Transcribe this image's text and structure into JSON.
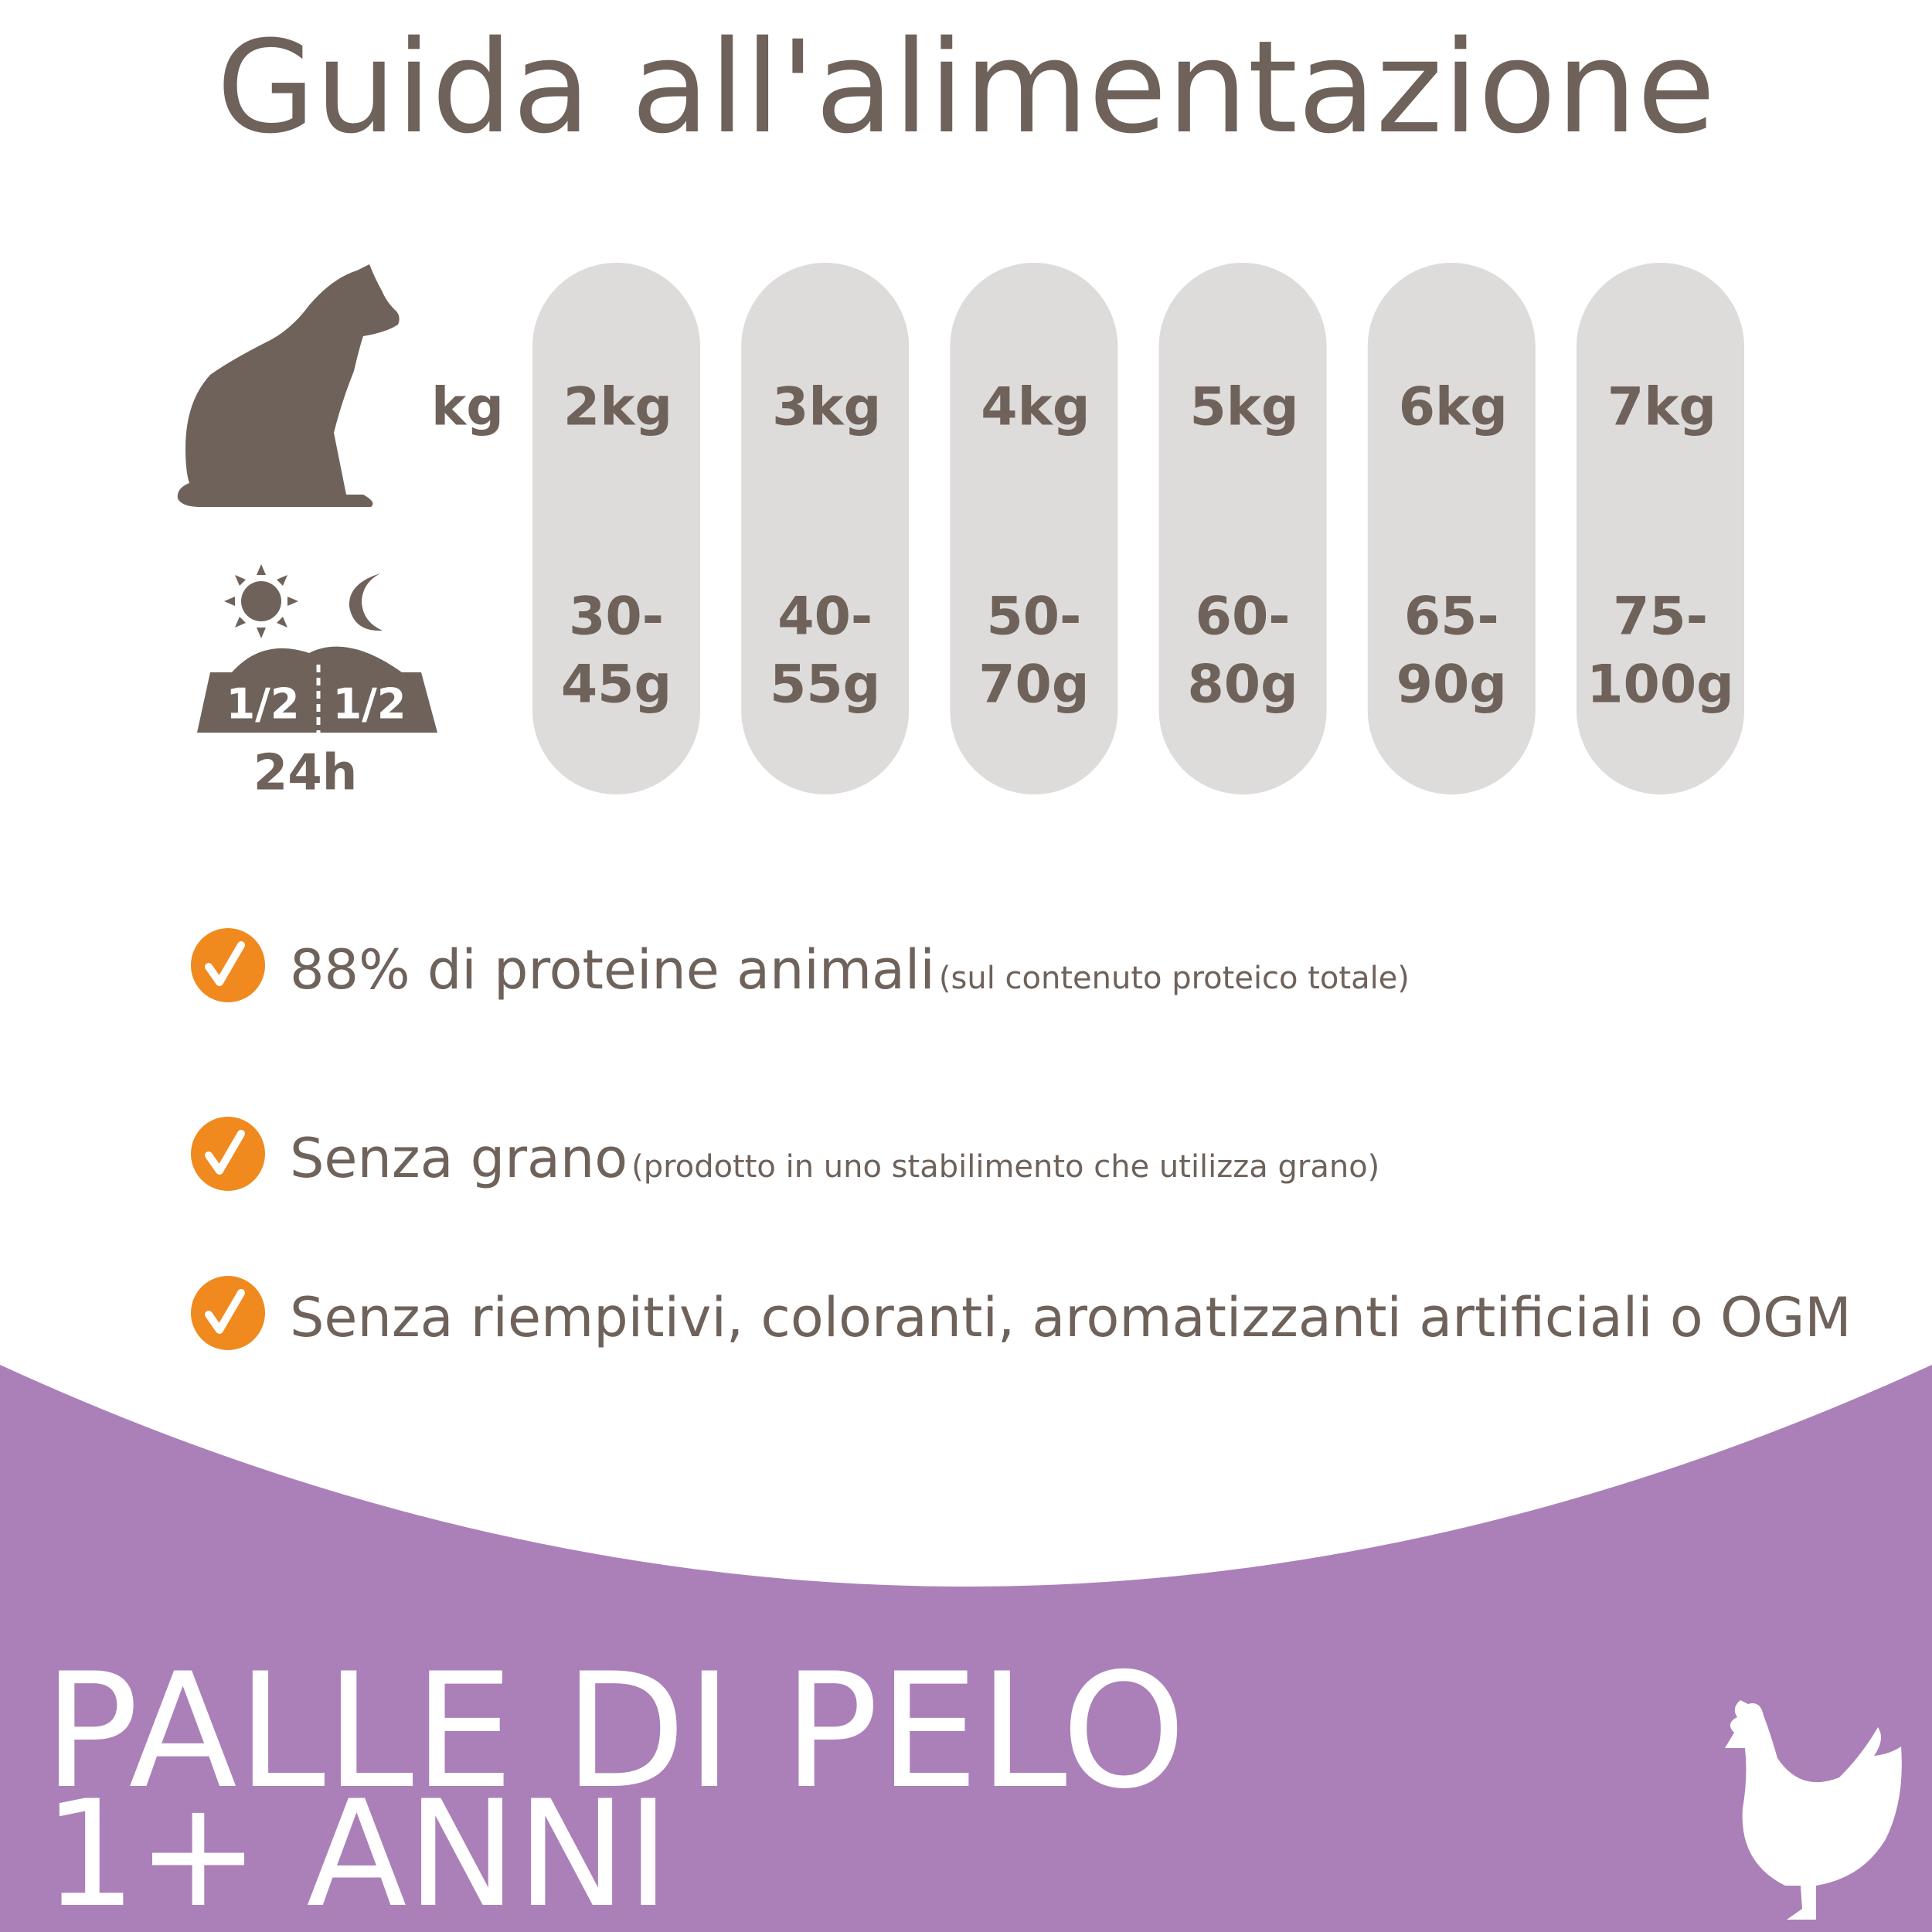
{
  "header": {
    "title": "Guida all'alimentazione"
  },
  "legend": {
    "weight_label": "kg",
    "half_left": "1/2",
    "half_right": "1/2",
    "period_label": "24h"
  },
  "columns": [
    {
      "weight": "2kg",
      "portion": [
        "30-",
        "45g"
      ]
    },
    {
      "weight": "3kg",
      "portion": [
        "40-",
        "55g"
      ]
    },
    {
      "weight": "4kg",
      "portion": [
        "50-",
        "70g"
      ]
    },
    {
      "weight": "5kg",
      "portion": [
        "60-",
        "80g"
      ]
    },
    {
      "weight": "6kg",
      "portion": [
        "65-",
        "90g"
      ]
    },
    {
      "weight": "7kg",
      "portion": [
        "75-",
        "100g"
      ]
    }
  ],
  "features": [
    {
      "text": "88% di proteine animali",
      "note": "(sul contenuto proteico totale)"
    },
    {
      "text": "Senza grano",
      "note": "(prodotto in uno stabilimento che utilizza grano)"
    },
    {
      "text": "Senza riempitivi, coloranti, aromatizzanti artificiali o OGM"
    }
  ],
  "footer": {
    "title": "PALLE DI PELO",
    "subtitle": "1+ ANNI"
  }
}
